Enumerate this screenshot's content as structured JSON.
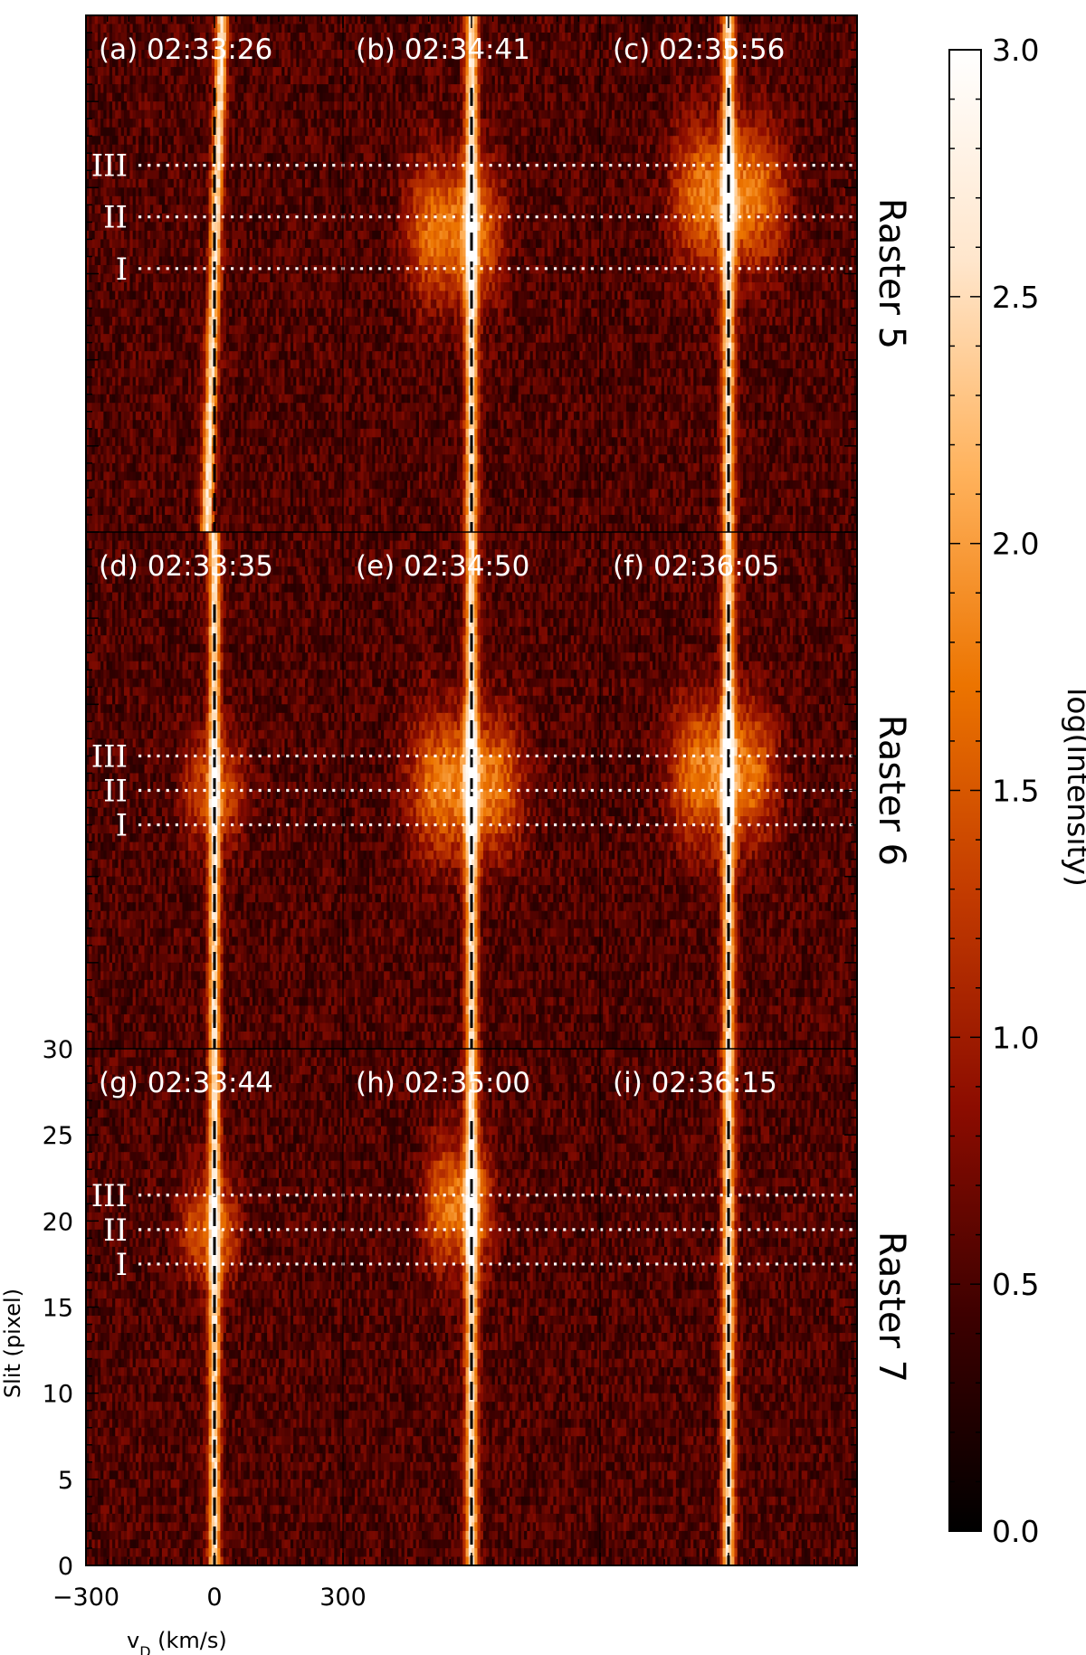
{
  "chart_data": {
    "type": "heatmap",
    "grid": false,
    "colorbar": {
      "label": "log(Intensity)",
      "min": 0.0,
      "max": 3.0,
      "ticks": [
        "0.0",
        "0.5",
        "1.0",
        "1.5",
        "2.0",
        "2.5",
        "3.0"
      ],
      "colormap": [
        "#000000",
        "#3c0000",
        "#8c0c00",
        "#c23a00",
        "#ec7400",
        "#ffb25c",
        "#ffe6cc",
        "#ffffff"
      ]
    },
    "x_axis": {
      "label_main": "v",
      "label_sub": "D",
      "label_unit": " (km/s)",
      "range": [
        -300,
        300
      ],
      "tick_labels": [
        "−300",
        "0",
        "300"
      ],
      "tick_values": [
        -300,
        0,
        300
      ]
    },
    "y_axis": {
      "label": "Slit (pixel)",
      "range": [
        0,
        30
      ],
      "tick_labels": [
        "0",
        "5",
        "10",
        "15",
        "20",
        "25",
        "30"
      ],
      "tick_values": [
        0,
        5,
        10,
        15,
        20,
        25,
        30
      ]
    },
    "rasters": [
      {
        "name": "Raster 5",
        "lines": [
          {
            "label": "III",
            "slit": 21.3
          },
          {
            "label": "II",
            "slit": 18.3
          },
          {
            "label": "I",
            "slit": 15.3
          }
        ],
        "panels": [
          {
            "label": "(a) 02:33:26",
            "line_width": 14,
            "centre_drift": 18,
            "blob": null
          },
          {
            "label": "(b) 02:34:41",
            "line_width": 15,
            "centre_drift": 0,
            "blob": {
              "slit": 17.5,
              "amplitude": 1.2,
              "halfwidth_v": 110,
              "halfwidth_slit": 4,
              "offset_v": -40
            }
          },
          {
            "label": "(c) 02:35:56",
            "line_width": 15,
            "centre_drift": 0,
            "blob": {
              "slit": 19.5,
              "amplitude": 1.3,
              "halfwidth_v": 130,
              "halfwidth_slit": 4,
              "offset_v": 0
            }
          }
        ]
      },
      {
        "name": "Raster 6",
        "lines": [
          {
            "label": "III",
            "slit": 17.0
          },
          {
            "label": "II",
            "slit": 15.0
          },
          {
            "label": "I",
            "slit": 13.0
          }
        ],
        "panels": [
          {
            "label": "(d) 02:33:35",
            "line_width": 14,
            "centre_drift": 0,
            "blob": {
              "slit": 15.0,
              "amplitude": 0.8,
              "halfwidth_v": 75,
              "halfwidth_slit": 3,
              "offset_v": 0
            }
          },
          {
            "label": "(e) 02:34:50",
            "line_width": 15,
            "centre_drift": 0,
            "blob": {
              "slit": 15.3,
              "amplitude": 1.3,
              "halfwidth_v": 130,
              "halfwidth_slit": 4,
              "offset_v": -15
            }
          },
          {
            "label": "(f) 02:36:05",
            "line_width": 15,
            "centre_drift": 0,
            "blob": {
              "slit": 16.0,
              "amplitude": 1.3,
              "halfwidth_v": 120,
              "halfwidth_slit": 4,
              "offset_v": -15
            }
          }
        ]
      },
      {
        "name": "Raster 7",
        "lines": [
          {
            "label": "III",
            "slit": 21.5
          },
          {
            "label": "II",
            "slit": 19.5
          },
          {
            "label": "I",
            "slit": 17.5
          }
        ],
        "panels": [
          {
            "label": "(g) 02:33:44",
            "line_width": 14,
            "centre_drift": 0,
            "blob": {
              "slit": 19.5,
              "amplitude": 0.9,
              "halfwidth_v": 70,
              "halfwidth_slit": 3,
              "offset_v": -10
            }
          },
          {
            "label": "(h) 02:35:00",
            "line_width": 15,
            "centre_drift": 0,
            "blob": {
              "slit": 21.0,
              "amplitude": 1.2,
              "halfwidth_v": 80,
              "halfwidth_slit": 3.5,
              "offset_v": -30
            }
          },
          {
            "label": "(i) 02:36:15",
            "line_width": 15,
            "centre_drift": 0,
            "blob": null
          }
        ]
      }
    ]
  }
}
